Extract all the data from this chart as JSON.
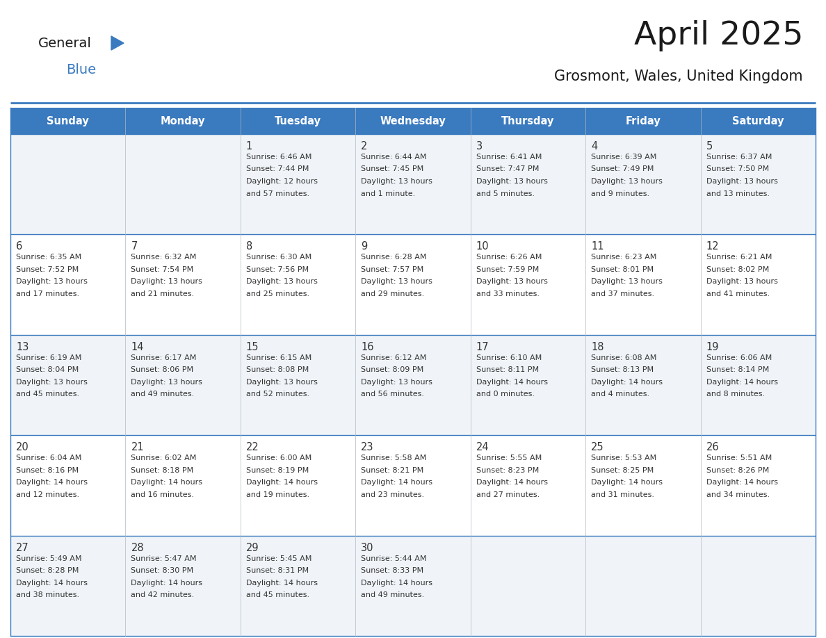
{
  "title": "April 2025",
  "subtitle": "Grosmont, Wales, United Kingdom",
  "header_bg": "#3a7abf",
  "header_text_color": "#ffffff",
  "cell_bg_odd": "#f0f4f8",
  "cell_bg_even": "#ffffff",
  "text_color": "#333333",
  "border_color": "#3a7abf",
  "days_of_week": [
    "Sunday",
    "Monday",
    "Tuesday",
    "Wednesday",
    "Thursday",
    "Friday",
    "Saturday"
  ],
  "weeks": [
    [
      {
        "day": "",
        "lines": []
      },
      {
        "day": "",
        "lines": []
      },
      {
        "day": "1",
        "lines": [
          "Sunrise: 6:46 AM",
          "Sunset: 7:44 PM",
          "Daylight: 12 hours",
          "and 57 minutes."
        ]
      },
      {
        "day": "2",
        "lines": [
          "Sunrise: 6:44 AM",
          "Sunset: 7:45 PM",
          "Daylight: 13 hours",
          "and 1 minute."
        ]
      },
      {
        "day": "3",
        "lines": [
          "Sunrise: 6:41 AM",
          "Sunset: 7:47 PM",
          "Daylight: 13 hours",
          "and 5 minutes."
        ]
      },
      {
        "day": "4",
        "lines": [
          "Sunrise: 6:39 AM",
          "Sunset: 7:49 PM",
          "Daylight: 13 hours",
          "and 9 minutes."
        ]
      },
      {
        "day": "5",
        "lines": [
          "Sunrise: 6:37 AM",
          "Sunset: 7:50 PM",
          "Daylight: 13 hours",
          "and 13 minutes."
        ]
      }
    ],
    [
      {
        "day": "6",
        "lines": [
          "Sunrise: 6:35 AM",
          "Sunset: 7:52 PM",
          "Daylight: 13 hours",
          "and 17 minutes."
        ]
      },
      {
        "day": "7",
        "lines": [
          "Sunrise: 6:32 AM",
          "Sunset: 7:54 PM",
          "Daylight: 13 hours",
          "and 21 minutes."
        ]
      },
      {
        "day": "8",
        "lines": [
          "Sunrise: 6:30 AM",
          "Sunset: 7:56 PM",
          "Daylight: 13 hours",
          "and 25 minutes."
        ]
      },
      {
        "day": "9",
        "lines": [
          "Sunrise: 6:28 AM",
          "Sunset: 7:57 PM",
          "Daylight: 13 hours",
          "and 29 minutes."
        ]
      },
      {
        "day": "10",
        "lines": [
          "Sunrise: 6:26 AM",
          "Sunset: 7:59 PM",
          "Daylight: 13 hours",
          "and 33 minutes."
        ]
      },
      {
        "day": "11",
        "lines": [
          "Sunrise: 6:23 AM",
          "Sunset: 8:01 PM",
          "Daylight: 13 hours",
          "and 37 minutes."
        ]
      },
      {
        "day": "12",
        "lines": [
          "Sunrise: 6:21 AM",
          "Sunset: 8:02 PM",
          "Daylight: 13 hours",
          "and 41 minutes."
        ]
      }
    ],
    [
      {
        "day": "13",
        "lines": [
          "Sunrise: 6:19 AM",
          "Sunset: 8:04 PM",
          "Daylight: 13 hours",
          "and 45 minutes."
        ]
      },
      {
        "day": "14",
        "lines": [
          "Sunrise: 6:17 AM",
          "Sunset: 8:06 PM",
          "Daylight: 13 hours",
          "and 49 minutes."
        ]
      },
      {
        "day": "15",
        "lines": [
          "Sunrise: 6:15 AM",
          "Sunset: 8:08 PM",
          "Daylight: 13 hours",
          "and 52 minutes."
        ]
      },
      {
        "day": "16",
        "lines": [
          "Sunrise: 6:12 AM",
          "Sunset: 8:09 PM",
          "Daylight: 13 hours",
          "and 56 minutes."
        ]
      },
      {
        "day": "17",
        "lines": [
          "Sunrise: 6:10 AM",
          "Sunset: 8:11 PM",
          "Daylight: 14 hours",
          "and 0 minutes."
        ]
      },
      {
        "day": "18",
        "lines": [
          "Sunrise: 6:08 AM",
          "Sunset: 8:13 PM",
          "Daylight: 14 hours",
          "and 4 minutes."
        ]
      },
      {
        "day": "19",
        "lines": [
          "Sunrise: 6:06 AM",
          "Sunset: 8:14 PM",
          "Daylight: 14 hours",
          "and 8 minutes."
        ]
      }
    ],
    [
      {
        "day": "20",
        "lines": [
          "Sunrise: 6:04 AM",
          "Sunset: 8:16 PM",
          "Daylight: 14 hours",
          "and 12 minutes."
        ]
      },
      {
        "day": "21",
        "lines": [
          "Sunrise: 6:02 AM",
          "Sunset: 8:18 PM",
          "Daylight: 14 hours",
          "and 16 minutes."
        ]
      },
      {
        "day": "22",
        "lines": [
          "Sunrise: 6:00 AM",
          "Sunset: 8:19 PM",
          "Daylight: 14 hours",
          "and 19 minutes."
        ]
      },
      {
        "day": "23",
        "lines": [
          "Sunrise: 5:58 AM",
          "Sunset: 8:21 PM",
          "Daylight: 14 hours",
          "and 23 minutes."
        ]
      },
      {
        "day": "24",
        "lines": [
          "Sunrise: 5:55 AM",
          "Sunset: 8:23 PM",
          "Daylight: 14 hours",
          "and 27 minutes."
        ]
      },
      {
        "day": "25",
        "lines": [
          "Sunrise: 5:53 AM",
          "Sunset: 8:25 PM",
          "Daylight: 14 hours",
          "and 31 minutes."
        ]
      },
      {
        "day": "26",
        "lines": [
          "Sunrise: 5:51 AM",
          "Sunset: 8:26 PM",
          "Daylight: 14 hours",
          "and 34 minutes."
        ]
      }
    ],
    [
      {
        "day": "27",
        "lines": [
          "Sunrise: 5:49 AM",
          "Sunset: 8:28 PM",
          "Daylight: 14 hours",
          "and 38 minutes."
        ]
      },
      {
        "day": "28",
        "lines": [
          "Sunrise: 5:47 AM",
          "Sunset: 8:30 PM",
          "Daylight: 14 hours",
          "and 42 minutes."
        ]
      },
      {
        "day": "29",
        "lines": [
          "Sunrise: 5:45 AM",
          "Sunset: 8:31 PM",
          "Daylight: 14 hours",
          "and 45 minutes."
        ]
      },
      {
        "day": "30",
        "lines": [
          "Sunrise: 5:44 AM",
          "Sunset: 8:33 PM",
          "Daylight: 14 hours",
          "and 49 minutes."
        ]
      },
      {
        "day": "",
        "lines": []
      },
      {
        "day": "",
        "lines": []
      },
      {
        "day": "",
        "lines": []
      }
    ]
  ],
  "logo_general_color": "#1a1a1a",
  "logo_blue_color": "#3a7abf",
  "logo_triangle_color": "#3a7abf"
}
